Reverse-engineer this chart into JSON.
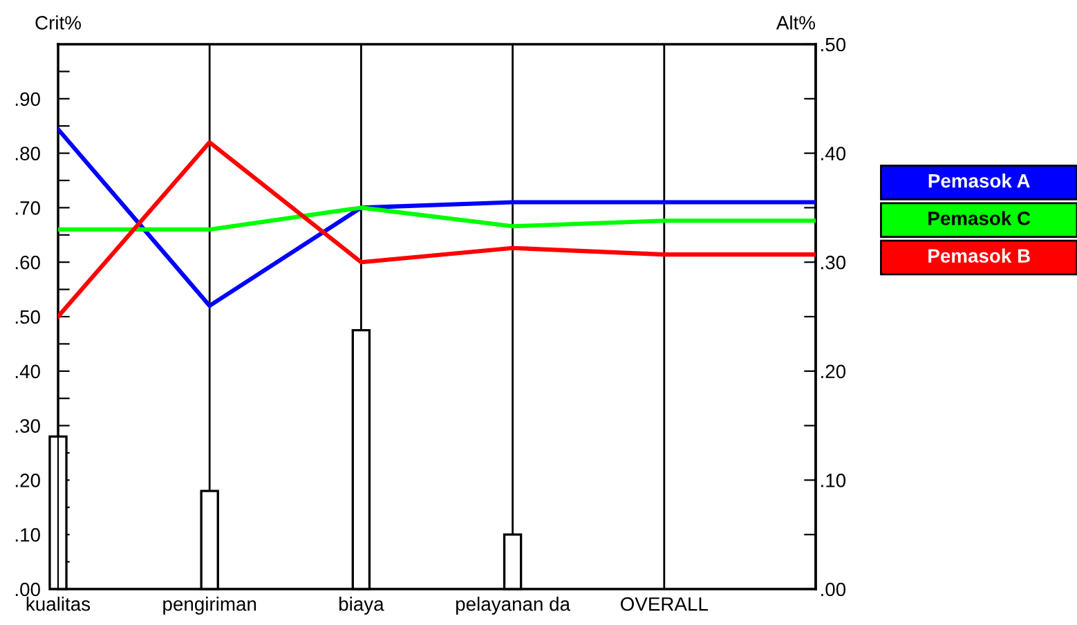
{
  "chart_data": {
    "type": "line",
    "ylabel": "Crit%",
    "y2label": "Alt%",
    "categories": [
      "kualitas",
      "pengiriman",
      "biaya",
      "pelayanan da",
      "OVERALL",
      null
    ],
    "ylim": [
      0,
      1
    ],
    "yticks": [
      {
        "value": 0,
        "label": ".00"
      },
      {
        "value": 0.05,
        "label": null
      },
      {
        "value": 0.1,
        "label": ".10"
      },
      {
        "value": 0.15,
        "label": null
      },
      {
        "value": 0.2,
        "label": ".20"
      },
      {
        "value": 0.25,
        "label": null
      },
      {
        "value": 0.3,
        "label": ".30"
      },
      {
        "value": 0.35,
        "label": null
      },
      {
        "value": 0.4,
        "label": ".40"
      },
      {
        "value": 0.45,
        "label": null
      },
      {
        "value": 0.5,
        "label": ".50"
      },
      {
        "value": 0.55,
        "label": null
      },
      {
        "value": 0.6,
        "label": ".60"
      },
      {
        "value": 0.65,
        "label": null
      },
      {
        "value": 0.7,
        "label": ".70"
      },
      {
        "value": 0.75,
        "label": null
      },
      {
        "value": 0.8,
        "label": ".80"
      },
      {
        "value": 0.85,
        "label": null
      },
      {
        "value": 0.9,
        "label": ".90"
      },
      {
        "value": 0.95,
        "label": null
      }
    ],
    "y2lim": [
      0,
      0.5
    ],
    "y2ticks": [
      {
        "value": 0,
        "label": ".00"
      },
      {
        "value": 0.05,
        "label": null
      },
      {
        "value": 0.1,
        "label": ".10"
      },
      {
        "value": 0.15,
        "label": null
      },
      {
        "value": 0.2,
        "label": ".20"
      },
      {
        "value": 0.25,
        "label": null
      },
      {
        "value": 0.3,
        "label": ".30"
      },
      {
        "value": 0.35,
        "label": null
      },
      {
        "value": 0.4,
        "label": ".40"
      },
      {
        "value": 0.45,
        "label": null
      },
      {
        "value": 0.5,
        "label": ".50"
      }
    ],
    "grid": "x",
    "legend": "right",
    "marker": "none",
    "line_style": "solid",
    "series": [
      {
        "type": "bar",
        "color": "#ffffff",
        "values": [
          0.28,
          0.18,
          0.475,
          0.1,
          null,
          null
        ]
      },
      {
        "name": "Pemasok A",
        "color": "#0000ff",
        "axis": "y2",
        "values": [
          0.422,
          0.26,
          0.35,
          0.355,
          0.355,
          0.355
        ]
      },
      {
        "name": "Pemasok C",
        "color": "#00ff00",
        "axis": "y2",
        "values": [
          0.33,
          0.33,
          0.35,
          0.333,
          0.338,
          0.338
        ]
      },
      {
        "name": "Pemasok B",
        "color": "#ff0000",
        "axis": "y2",
        "values": [
          0.25,
          0.41,
          0.3,
          0.313,
          0.307,
          0.307
        ]
      }
    ]
  }
}
